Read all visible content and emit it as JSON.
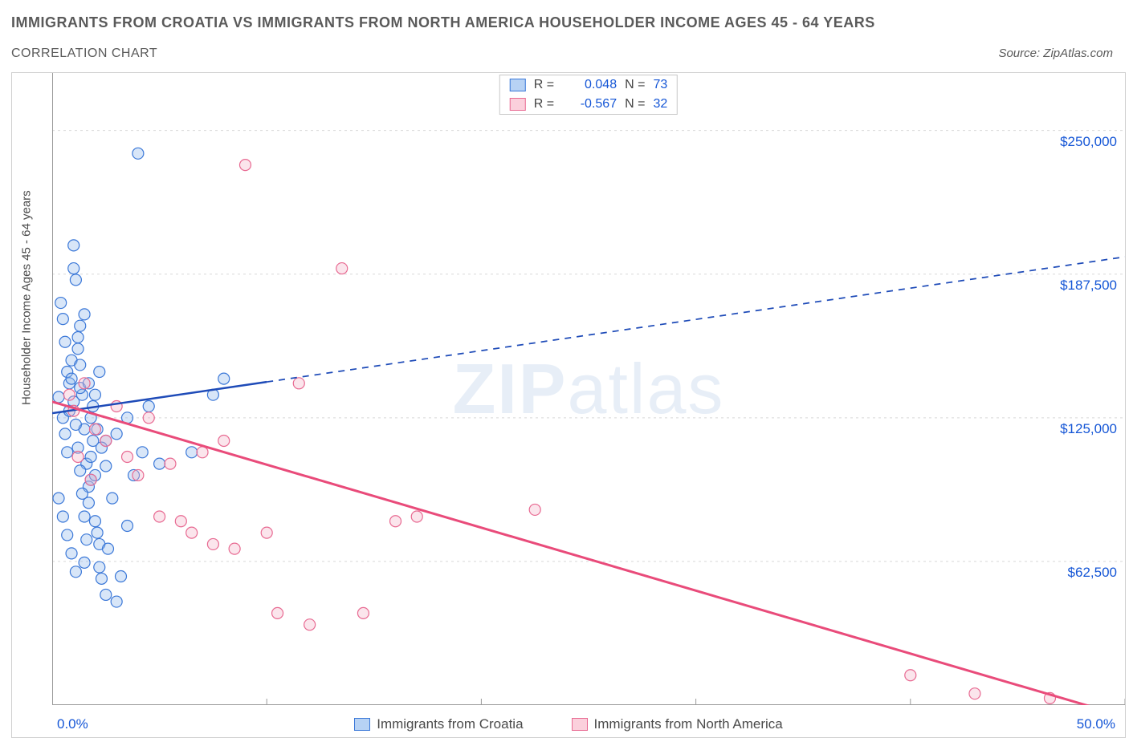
{
  "title": "IMMIGRANTS FROM CROATIA VS IMMIGRANTS FROM NORTH AMERICA HOUSEHOLDER INCOME AGES 45 - 64 YEARS",
  "subtitle": "CORRELATION CHART",
  "source": "Source: ZipAtlas.com",
  "watermark_bold": "ZIP",
  "watermark_rest": "atlas",
  "ylabel": "Householder Income Ages 45 - 64 years",
  "legend_top": {
    "rows": [
      {
        "swatch_fill": "#b7d2f4",
        "swatch_border": "#3b78d8",
        "r_label": "R =",
        "r_value": "0.048",
        "n_label": "N =",
        "n_value": "73"
      },
      {
        "swatch_fill": "#fbd0dc",
        "swatch_border": "#e86a92",
        "r_label": "R =",
        "r_value": "-0.567",
        "n_label": "N =",
        "n_value": "32"
      }
    ]
  },
  "legend_bottom": {
    "items": [
      {
        "swatch_fill": "#b7d2f4",
        "swatch_border": "#3b78d8",
        "label": "Immigrants from Croatia"
      },
      {
        "swatch_fill": "#fbd0dc",
        "swatch_border": "#e86a92",
        "label": "Immigrants from North America"
      }
    ]
  },
  "chart": {
    "type": "scatter",
    "xlim": [
      0,
      50
    ],
    "ylim": [
      0,
      275000
    ],
    "x_axis_min_label": "0.0%",
    "x_axis_max_label": "50.0%",
    "x_ticks": [
      0,
      10,
      20,
      30,
      40,
      50
    ],
    "y_gridlines": [
      {
        "value": 62500,
        "label": "$62,500"
      },
      {
        "value": 125000,
        "label": "$125,000"
      },
      {
        "value": 187500,
        "label": "$187,500"
      },
      {
        "value": 250000,
        "label": "$250,000"
      }
    ],
    "background_color": "#ffffff",
    "grid_color": "#d8d8d8",
    "axis_color": "#9a9a9a",
    "marker_radius": 7,
    "marker_fill_opacity": 0.35,
    "marker_stroke_width": 1.2,
    "series": [
      {
        "name": "Immigrants from Croatia",
        "color_fill": "#8fb8ec",
        "color_stroke": "#3b78d8",
        "trend": {
          "x1": 0,
          "y1": 127000,
          "x2": 50,
          "y2": 195000,
          "solid_until_x": 10,
          "color": "#1e4bb8",
          "width": 2.5
        },
        "points": [
          [
            0.3,
            134000
          ],
          [
            0.5,
            125000
          ],
          [
            0.6,
            118000
          ],
          [
            0.7,
            110000
          ],
          [
            0.8,
            128000
          ],
          [
            0.8,
            140000
          ],
          [
            0.9,
            150000
          ],
          [
            1.0,
            200000
          ],
          [
            1.0,
            190000
          ],
          [
            1.1,
            185000
          ],
          [
            1.2,
            160000
          ],
          [
            1.2,
            155000
          ],
          [
            1.3,
            148000
          ],
          [
            1.3,
            165000
          ],
          [
            1.4,
            135000
          ],
          [
            1.5,
            170000
          ],
          [
            1.5,
            120000
          ],
          [
            1.6,
            105000
          ],
          [
            1.7,
            95000
          ],
          [
            1.7,
            88000
          ],
          [
            1.8,
            98000
          ],
          [
            1.8,
            108000
          ],
          [
            1.9,
            115000
          ],
          [
            2.0,
            100000
          ],
          [
            2.0,
            80000
          ],
          [
            2.1,
            75000
          ],
          [
            2.2,
            70000
          ],
          [
            2.2,
            60000
          ],
          [
            2.3,
            55000
          ],
          [
            2.5,
            48000
          ],
          [
            2.6,
            68000
          ],
          [
            2.8,
            90000
          ],
          [
            3.0,
            45000
          ],
          [
            3.2,
            56000
          ],
          [
            3.5,
            78000
          ],
          [
            3.8,
            100000
          ],
          [
            4.0,
            240000
          ],
          [
            4.2,
            110000
          ],
          [
            4.5,
            130000
          ],
          [
            5.0,
            105000
          ],
          [
            0.4,
            175000
          ],
          [
            0.5,
            168000
          ],
          [
            0.6,
            158000
          ],
          [
            0.7,
            145000
          ],
          [
            0.9,
            142000
          ],
          [
            1.0,
            132000
          ],
          [
            1.1,
            122000
          ],
          [
            1.2,
            112000
          ],
          [
            1.3,
            102000
          ],
          [
            1.4,
            92000
          ],
          [
            1.5,
            82000
          ],
          [
            1.6,
            72000
          ],
          [
            1.8,
            125000
          ],
          [
            2.0,
            135000
          ],
          [
            2.2,
            145000
          ],
          [
            2.5,
            115000
          ],
          [
            0.3,
            90000
          ],
          [
            0.5,
            82000
          ],
          [
            0.7,
            74000
          ],
          [
            0.9,
            66000
          ],
          [
            1.1,
            58000
          ],
          [
            1.3,
            138000
          ],
          [
            1.5,
            62000
          ],
          [
            1.7,
            140000
          ],
          [
            1.9,
            130000
          ],
          [
            2.1,
            120000
          ],
          [
            2.3,
            112000
          ],
          [
            2.5,
            104000
          ],
          [
            3.0,
            118000
          ],
          [
            3.5,
            125000
          ],
          [
            6.5,
            110000
          ],
          [
            7.5,
            135000
          ],
          [
            8.0,
            142000
          ]
        ]
      },
      {
        "name": "Immigrants from North America",
        "color_fill": "#f4b4c8",
        "color_stroke": "#e86a92",
        "trend": {
          "x1": 0,
          "y1": 132000,
          "x2": 50,
          "y2": -5000,
          "solid_until_x": 50,
          "color": "#e94b7a",
          "width": 3
        },
        "points": [
          [
            0.8,
            135000
          ],
          [
            1.0,
            128000
          ],
          [
            1.2,
            108000
          ],
          [
            1.5,
            140000
          ],
          [
            1.8,
            98000
          ],
          [
            2.0,
            120000
          ],
          [
            2.5,
            115000
          ],
          [
            3.0,
            130000
          ],
          [
            3.5,
            108000
          ],
          [
            4.0,
            100000
          ],
          [
            4.5,
            125000
          ],
          [
            5.0,
            82000
          ],
          [
            5.5,
            105000
          ],
          [
            6.0,
            80000
          ],
          [
            6.5,
            75000
          ],
          [
            7.0,
            110000
          ],
          [
            7.5,
            70000
          ],
          [
            8.0,
            115000
          ],
          [
            8.5,
            68000
          ],
          [
            9.0,
            235000
          ],
          [
            10.0,
            75000
          ],
          [
            10.5,
            40000
          ],
          [
            11.5,
            140000
          ],
          [
            12.0,
            35000
          ],
          [
            13.5,
            190000
          ],
          [
            14.5,
            40000
          ],
          [
            16.0,
            80000
          ],
          [
            17.0,
            82000
          ],
          [
            22.5,
            85000
          ],
          [
            40.0,
            13000
          ],
          [
            43.0,
            5000
          ],
          [
            46.5,
            3000
          ]
        ]
      }
    ]
  }
}
